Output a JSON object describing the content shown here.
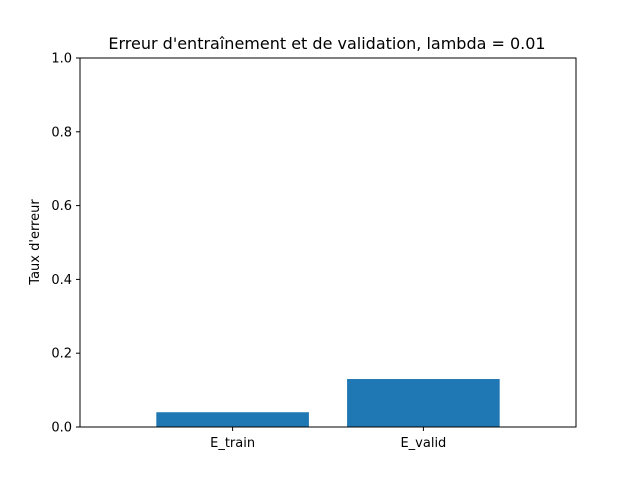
{
  "chart_data": {
    "type": "bar",
    "title": "Erreur d'entraînement et de validation, lambda = 0.01",
    "xlabel": "",
    "ylabel": "Taux d'erreur",
    "categories": [
      "E_train",
      "E_valid"
    ],
    "values": [
      0.04,
      0.13
    ],
    "ylim": [
      0,
      1.0
    ],
    "yticks": [
      "0.0",
      "0.2",
      "0.4",
      "0.6",
      "0.8",
      "1.0"
    ],
    "grid": false,
    "legend": "none",
    "colors": {
      "bar": "#1f77b4",
      "axes": "#000000",
      "background": "#ffffff"
    }
  }
}
